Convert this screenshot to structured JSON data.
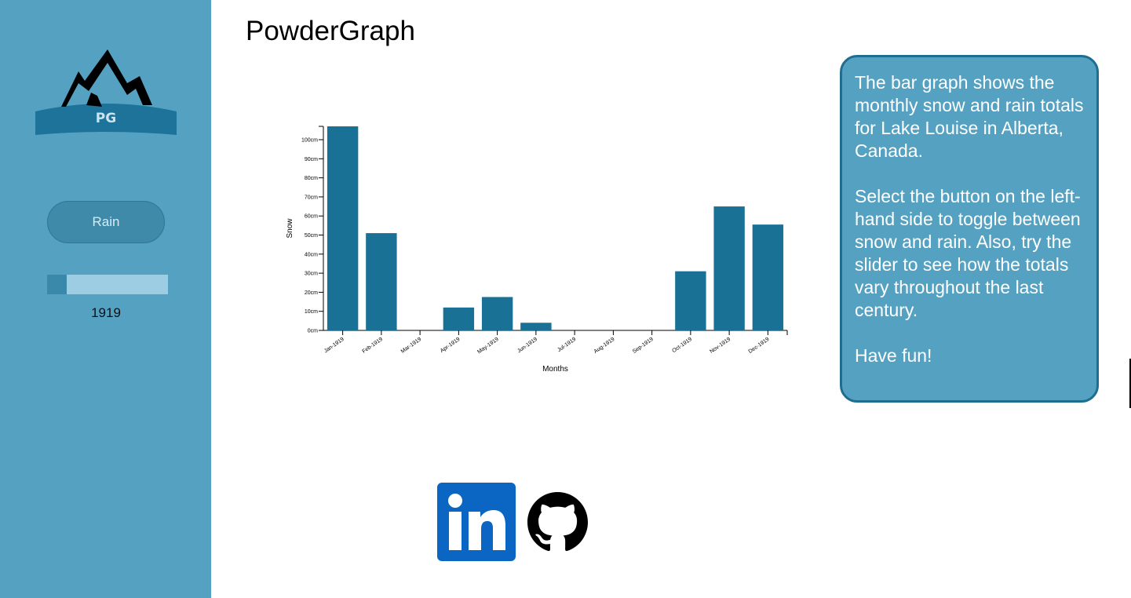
{
  "sidebar": {
    "logo_text": "PG",
    "toggle_label": "Rain",
    "slider_value": 0,
    "year": "1919"
  },
  "header": {
    "title": "PowderGraph"
  },
  "info": {
    "paragraphs": [
      "The bar graph shows the monthly snow and rain totals for Lake Louise in Alberta, Canada.",
      "Select the button on the left-hand side to toggle between snow and rain. Also, try the slider to see how the totals vary throughout the last century.",
      "Have fun!"
    ]
  },
  "colors": {
    "sidebar": "#55a1c1",
    "bar": "#1a7196",
    "info_border": "#1e6e92",
    "linkedin": "#0a66c2"
  },
  "icons": {
    "linkedin": "linkedin-icon",
    "github": "github-icon"
  },
  "chart_data": {
    "type": "bar",
    "xlabel": "Months",
    "ylabel": "Snow",
    "categories": [
      "Jan-1919",
      "Feb-1919",
      "Mar-1919",
      "Apr-1919",
      "May-1919",
      "Jun-1919",
      "Jul-1919",
      "Aug-1919",
      "Sep-1919",
      "Oct-1919",
      "Nov-1919",
      "Dec-1919"
    ],
    "values": [
      107,
      51,
      0,
      12,
      17.5,
      4,
      0,
      0,
      0,
      31,
      65,
      55.5
    ],
    "yticks": [
      "0cm",
      "10cm",
      "20cm",
      "30cm",
      "40cm",
      "50cm",
      "60cm",
      "70cm",
      "80cm",
      "90cm",
      "100cm"
    ],
    "ylim": [
      0,
      107
    ],
    "grid": false
  }
}
